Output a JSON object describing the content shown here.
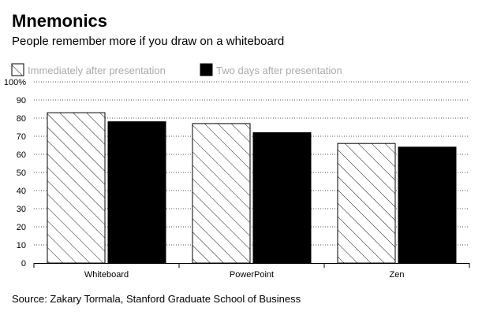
{
  "chart_data": {
    "type": "bar",
    "title": "Mnemonics",
    "subtitle": "People remember more if you draw on a whiteboard",
    "categories": [
      "Whiteboard",
      "PowerPoint",
      "Zen"
    ],
    "series": [
      {
        "name": "Immediately after presentation",
        "values": [
          83,
          77,
          66
        ],
        "style": "hatched",
        "color": "#ffffff"
      },
      {
        "name": "Two days after presentation",
        "values": [
          78,
          72,
          64
        ],
        "style": "solid",
        "color": "#000000"
      }
    ],
    "ylim": [
      0,
      100
    ],
    "yticks": [
      "0",
      "10",
      "20",
      "30",
      "40",
      "50",
      "60",
      "70",
      "80",
      "90",
      "100%"
    ],
    "xlabel": "",
    "ylabel": "",
    "grid": true,
    "legend_position": "top-left",
    "source": "Source: Zakary Tormala, Stanford Graduate School of Business"
  }
}
